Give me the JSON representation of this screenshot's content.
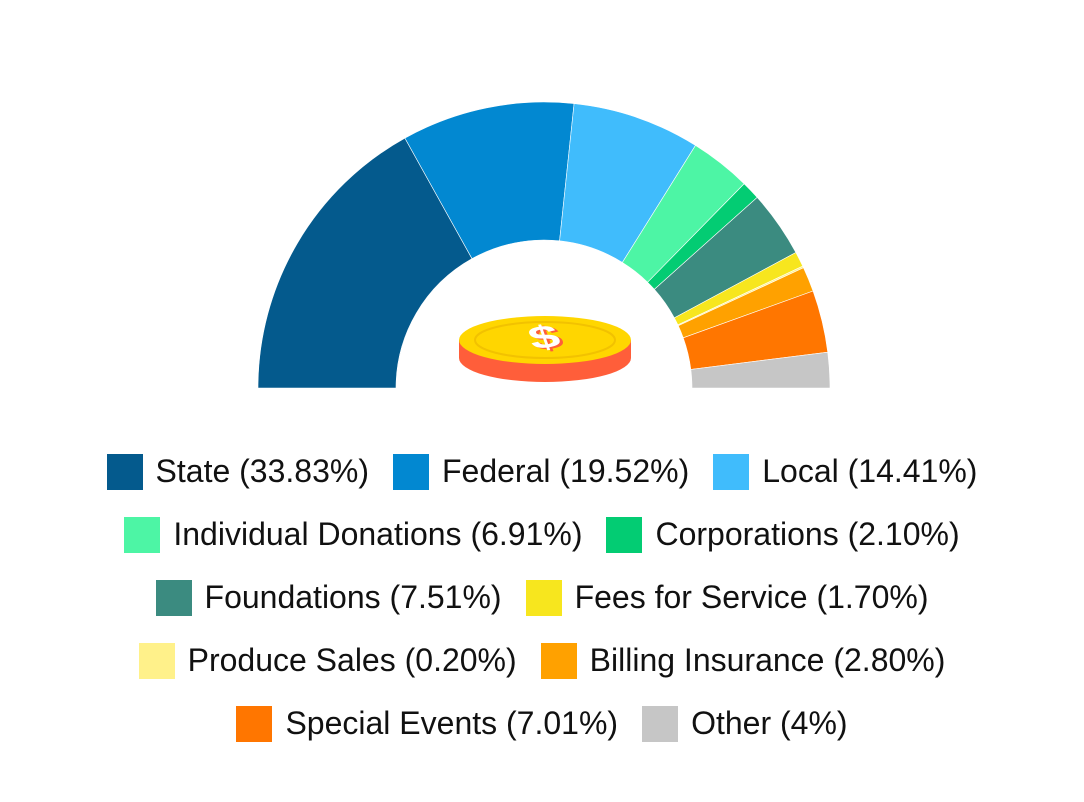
{
  "chart_data": {
    "type": "pie",
    "variant": "semi-donut",
    "center_icon": "dollar-coin-icon",
    "legend_position": "bottom",
    "slices": [
      {
        "label": "State (33.83%)",
        "name": "State",
        "value": 33.83,
        "color": "#045A8D"
      },
      {
        "label": "Federal (19.52%)",
        "name": "Federal",
        "value": 19.52,
        "color": "#0288D1"
      },
      {
        "label": "Local (14.41%)",
        "name": "Local",
        "value": 14.41,
        "color": "#40BCFC"
      },
      {
        "label": "Individual Donations (6.91%)",
        "name": "Individual Donations",
        "value": 6.91,
        "color": "#4DF5A5"
      },
      {
        "label": "Corporations (2.10%)",
        "name": "Corporations",
        "value": 2.1,
        "color": "#03CC73"
      },
      {
        "label": "Foundations (7.51%)",
        "name": "Foundations",
        "value": 7.51,
        "color": "#3B8B80"
      },
      {
        "label": "Fees for Service (1.70%)",
        "name": "Fees for Service",
        "value": 1.7,
        "color": "#F7E61E"
      },
      {
        "label": "Produce Sales (0.20%)",
        "name": "Produce Sales",
        "value": 0.2,
        "color": "#FFF18A"
      },
      {
        "label": "Billing Insurance (2.80%)",
        "name": "Billing Insurance",
        "value": 2.8,
        "color": "#FFA100"
      },
      {
        "label": "Special Events (7.01%)",
        "name": "Special Events",
        "value": 7.01,
        "color": "#FF7600"
      },
      {
        "label": "Other (4%)",
        "name": "Other",
        "value": 4,
        "color": "#C6C6C6"
      }
    ]
  }
}
